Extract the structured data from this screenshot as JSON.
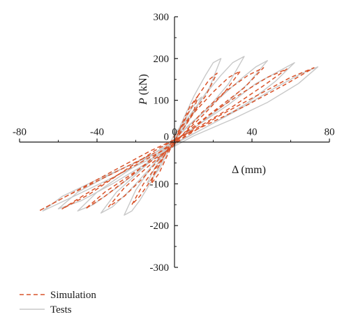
{
  "chart_data": {
    "type": "line",
    "title": "",
    "xlabel_symbol": "Δ",
    "xlabel_unit": " (mm)",
    "ylabel_symbol": "P",
    "ylabel_unit": " (kN)",
    "xlim": [
      -80,
      80
    ],
    "ylim": [
      -300,
      300
    ],
    "xticks": [
      -80,
      -40,
      0,
      40,
      80
    ],
    "yticks": [
      -300,
      -200,
      -100,
      0,
      100,
      200,
      300
    ],
    "grid": false,
    "legend_position": "bottom-left",
    "series": [
      {
        "name": "Tests",
        "style": "solid",
        "color": "#c8c8c8",
        "x": [
          0,
          4,
          8,
          12,
          14,
          10,
          5,
          0,
          -4,
          -8,
          -12,
          -14,
          -10,
          -5,
          0,
          5,
          10,
          16,
          20,
          24,
          18,
          10,
          0,
          -6,
          -12,
          -18,
          -22,
          -26,
          -20,
          -12,
          0,
          8,
          16,
          24,
          30,
          36,
          28,
          18,
          6,
          -4,
          -14,
          -24,
          -32,
          -38,
          -30,
          -18,
          -5,
          10,
          22,
          34,
          42,
          48,
          38,
          26,
          12,
          -2,
          -16,
          -30,
          -42,
          -50,
          -40,
          -26,
          -10,
          12,
          28,
          42,
          54,
          62,
          52,
          38,
          22,
          4,
          -14,
          -32,
          -48,
          -60,
          -50,
          -34,
          -14,
          14,
          34,
          52,
          66,
          74,
          64,
          48,
          30,
          10,
          -10,
          -32,
          -52,
          -68,
          -58,
          -40,
          -18,
          0
        ],
        "y": [
          0,
          40,
          75,
          100,
          108,
          70,
          35,
          10,
          -30,
          -65,
          -90,
          -98,
          -60,
          -25,
          8,
          60,
          110,
          160,
          190,
          200,
          130,
          75,
          20,
          -40,
          -95,
          -140,
          -165,
          -175,
          -115,
          -60,
          0,
          65,
          115,
          160,
          190,
          205,
          140,
          85,
          35,
          -15,
          -70,
          -120,
          -155,
          -170,
          -120,
          -70,
          -15,
          50,
          100,
          150,
          180,
          195,
          140,
          90,
          40,
          -5,
          -60,
          -110,
          -150,
          -165,
          -120,
          -75,
          -25,
          40,
          90,
          140,
          170,
          190,
          145,
          95,
          50,
          5,
          -50,
          -100,
          -140,
          -160,
          -120,
          -80,
          -35,
          30,
          80,
          130,
          165,
          180,
          140,
          95,
          55,
          15,
          -35,
          -85,
          -130,
          -165,
          -130,
          -90,
          -45,
          -10
        ]
      },
      {
        "name": "Simulation",
        "style": "dashed",
        "color": "#d9542b",
        "x": [
          0,
          4,
          8,
          12,
          10,
          5,
          0,
          -4,
          -8,
          -12,
          -10,
          -5,
          0,
          6,
          12,
          18,
          22,
          16,
          8,
          0,
          -6,
          -12,
          -18,
          -22,
          -16,
          -8,
          0,
          10,
          20,
          28,
          34,
          26,
          16,
          6,
          -6,
          -16,
          -26,
          -34,
          -26,
          -14,
          0,
          14,
          26,
          38,
          46,
          36,
          22,
          8,
          -8,
          -22,
          -36,
          -46,
          -36,
          -20,
          -2,
          18,
          34,
          48,
          58,
          46,
          30,
          12,
          -10,
          -28,
          -44,
          -58,
          -46,
          -28,
          -6,
          22,
          42,
          60,
          72,
          58,
          38,
          16,
          -12,
          -34,
          -54,
          -70,
          -56,
          -34,
          -10
        ],
        "y": [
          0,
          45,
          85,
          110,
          75,
          35,
          5,
          -35,
          -75,
          -100,
          -65,
          -30,
          0,
          60,
          110,
          150,
          165,
          110,
          60,
          15,
          -40,
          -90,
          -130,
          -150,
          -100,
          -50,
          0,
          70,
          120,
          155,
          170,
          120,
          70,
          25,
          -30,
          -85,
          -130,
          -155,
          -110,
          -60,
          -5,
          70,
          120,
          160,
          178,
          130,
          80,
          30,
          -25,
          -80,
          -130,
          -160,
          -120,
          -70,
          -15,
          65,
          115,
          155,
          175,
          135,
          85,
          35,
          -20,
          -75,
          -125,
          -160,
          -125,
          -75,
          -20,
          60,
          110,
          155,
          178,
          140,
          90,
          40,
          -20,
          -75,
          -125,
          -165,
          -130,
          -80,
          -25
        ]
      }
    ]
  }
}
